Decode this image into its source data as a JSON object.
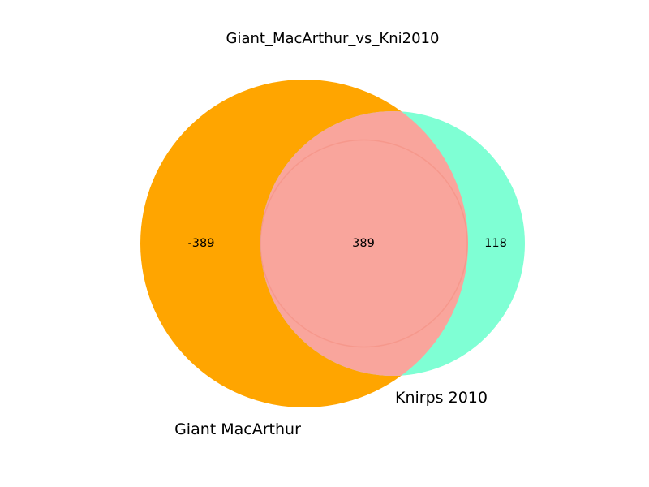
{
  "chart_data": {
    "type": "venn",
    "title": "Giant_MacArthur_vs_Kni2010",
    "sets": [
      {
        "name": "Giant MacArthur",
        "color": "#ffa500"
      },
      {
        "name": "Knirps 2010",
        "color": "#7fffd4"
      }
    ],
    "regions": {
      "only_a": "-389",
      "intersection": "389",
      "only_b": "118"
    },
    "intersection_color": "#f9a59c"
  }
}
